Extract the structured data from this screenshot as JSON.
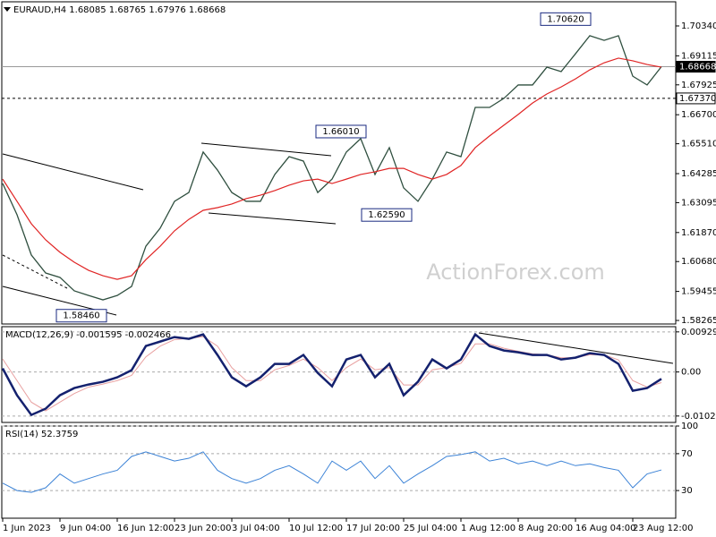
{
  "chart_data": [
    {
      "type": "line",
      "title": "EURAUD,H4  1.68085 1.68765 1.67976 1.68668",
      "watermark": "ActionForex.com",
      "ylim": [
        1.5812,
        1.7133
      ],
      "grid": false,
      "yticks": [
        {
          "value": 1.7034,
          "label": "1.70340"
        },
        1.69115,
        1.67925,
        {
          "value": 1.667,
          "label": "1.66700"
        },
        {
          "value": 1.6551,
          "label": "1.65510"
        },
        1.64285,
        1.63095,
        {
          "value": 1.6187,
          "label": "1.61870"
        },
        {
          "value": 1.6068,
          "label": "1.60680"
        },
        1.59455,
        1.58265
      ],
      "hlines": [
        {
          "value": 1.68668,
          "label": "1.68668",
          "style": "current"
        },
        {
          "value": 1.6737,
          "label": "1.67370",
          "style": "dashed"
        }
      ],
      "annotations": [
        {
          "value": 1.7062,
          "label": "1.70620"
        },
        {
          "value": 1.6601,
          "label": "1.66010"
        },
        {
          "value": 1.6259,
          "label": "1.62590"
        },
        {
          "value": 1.5846,
          "label": "1.58460"
        }
      ],
      "series": [
        {
          "color": "#2f4f3f",
          "width": 1.3,
          "values": [
            1.6388,
            1.626,
            1.6095,
            1.6021,
            1.6003,
            1.5948,
            1.5929,
            1.5911,
            1.5929,
            1.5966,
            1.6131,
            1.6205,
            1.6315,
            1.6351,
            1.6517,
            1.6443,
            1.6351,
            1.6315,
            1.6315,
            1.6425,
            1.6498,
            1.648,
            1.6351,
            1.6406,
            1.6517,
            1.6572,
            1.6425,
            1.6535,
            1.637,
            1.6315,
            1.6406,
            1.6517,
            1.6498,
            1.67,
            1.67,
            1.6737,
            1.6792,
            1.6792,
            1.6865,
            1.6847,
            1.692,
            1.6994,
            1.6975,
            1.6994,
            1.6828,
            1.6792,
            1.6867
          ]
        },
        {
          "color": "#e02424",
          "width": 1.2,
          "values": [
            1.6406,
            1.6315,
            1.6223,
            1.6157,
            1.6106,
            1.6065,
            1.6032,
            1.601,
            1.5995,
            1.601,
            1.6076,
            1.6131,
            1.6194,
            1.6241,
            1.6278,
            1.6289,
            1.6304,
            1.6326,
            1.634,
            1.6359,
            1.6381,
            1.6399,
            1.6406,
            1.6388,
            1.6406,
            1.6425,
            1.6436,
            1.645,
            1.645,
            1.6425,
            1.6406,
            1.6425,
            1.6462,
            1.6535,
            1.6583,
            1.6627,
            1.6671,
            1.6718,
            1.6755,
            1.6784,
            1.6817,
            1.6854,
            1.6883,
            1.6902,
            1.6891,
            1.6876,
            1.6865
          ]
        }
      ]
    },
    {
      "type": "line",
      "title": "MACD(12,26,9) -0.001595 -0.002466",
      "ylim": [
        -0.0117,
        0.0105
      ],
      "grid": true,
      "yticks": [
        0.009291,
        {
          "value": 0,
          "label": "0.00"
        },
        -0.010211
      ],
      "series": [
        {
          "color": "#e8a0a0",
          "width": 1,
          "values": [
            0.003,
            -0.002,
            -0.007,
            -0.009,
            -0.007,
            -0.005,
            -0.0035,
            -0.0028,
            -0.002,
            -0.0008,
            0.0035,
            0.006,
            0.0075,
            0.0078,
            0.0082,
            0.006,
            0.001,
            -0.002,
            -0.002,
            0.0005,
            0.0015,
            0.003,
            0.001,
            -0.002,
            0.001,
            0.003,
            0.0005,
            0.001,
            -0.003,
            -0.003,
            0.0005,
            0.001,
            0.002,
            0.0065,
            0.0065,
            0.0055,
            0.0048,
            0.0042,
            0.004,
            0.0033,
            0.0033,
            0.004,
            0.004,
            0.0028,
            -0.002,
            -0.0035,
            -0.002466
          ]
        },
        {
          "color": "#14216e",
          "width": 2.5,
          "values": [
            0.00083,
            -0.00539,
            -0.00996,
            -0.00851,
            -0.00539,
            -0.00373,
            -0.0029,
            -0.00228,
            -0.00124,
            0.00041,
            0.00602,
            0.00705,
            0.00809,
            0.00768,
            0.00871,
            0.00394,
            -0.00124,
            -0.00332,
            -0.00124,
            0.00187,
            0.00187,
            0.00394,
            -0.00021,
            -0.00332,
            0.0029,
            0.00394,
            -0.00124,
            0.00187,
            -0.00539,
            -0.00228,
            0.0029,
            0.00083,
            0.0029,
            0.00871,
            0.00602,
            0.00498,
            0.00456,
            0.00394,
            0.00394,
            0.0029,
            0.00332,
            0.00436,
            0.00394,
            0.00187,
            -0.00436,
            -0.00373,
            -0.001595
          ]
        }
      ]
    },
    {
      "type": "line",
      "title": "RSI(14) 52.3759",
      "ylim": [
        0,
        100
      ],
      "grid": true,
      "yticks": [
        100,
        70,
        30
      ],
      "categories": [
        "1 Jun 2023",
        null,
        null,
        null,
        "9 Jun 04:00",
        null,
        null,
        null,
        "16 Jun 12:00",
        null,
        null,
        null,
        "23 Jun 20:00",
        null,
        null,
        null,
        "3 Jul 04:00",
        null,
        null,
        null,
        "10 Jul 12:00",
        null,
        null,
        null,
        "17 Jul 20:00",
        null,
        null,
        null,
        "25 Jul 04:00",
        null,
        null,
        null,
        "1 Aug 12:00",
        null,
        null,
        null,
        "8 Aug 20:00",
        null,
        null,
        null,
        "16 Aug 04:00",
        null,
        null,
        null,
        "23 Aug 12:00",
        null,
        null
      ],
      "series": [
        {
          "color": "#3b82d6",
          "width": 1,
          "values": [
            38,
            30,
            28,
            33,
            48,
            38,
            43,
            48,
            52,
            67,
            72,
            67,
            62,
            65,
            72,
            52,
            43,
            38,
            43,
            52,
            57,
            48,
            38,
            62,
            52,
            62,
            43,
            57,
            38,
            48,
            57,
            67,
            69,
            72,
            62,
            65,
            59,
            62,
            57,
            62,
            57,
            59,
            55,
            52,
            33,
            48,
            52.3759
          ]
        }
      ]
    }
  ]
}
